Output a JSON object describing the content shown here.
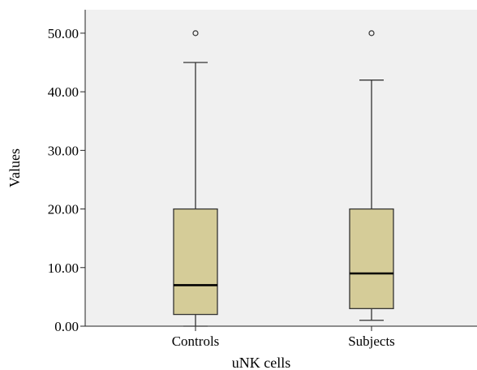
{
  "chart_data": {
    "type": "box",
    "title": "",
    "xlabel": "uNK cells",
    "ylabel": "Values",
    "ylim": [
      0,
      54
    ],
    "yticks": [
      "0.00",
      "10.00",
      "20.00",
      "30.00",
      "40.00",
      "50.00"
    ],
    "categories": [
      "Controls",
      "Subjects"
    ],
    "boxes": [
      {
        "category": "Controls",
        "min": 0,
        "q1": 2,
        "median": 7,
        "q3": 20,
        "max": 45,
        "outliers": [
          50
        ]
      },
      {
        "category": "Subjects",
        "min": 1,
        "q1": 3,
        "median": 9,
        "q3": 20,
        "max": 42,
        "outliers": [
          50
        ]
      }
    ],
    "grid": false,
    "colors": {
      "plot_background": "#f0f0f0",
      "box_fill": "#d5cc98",
      "line": "#333333"
    }
  }
}
